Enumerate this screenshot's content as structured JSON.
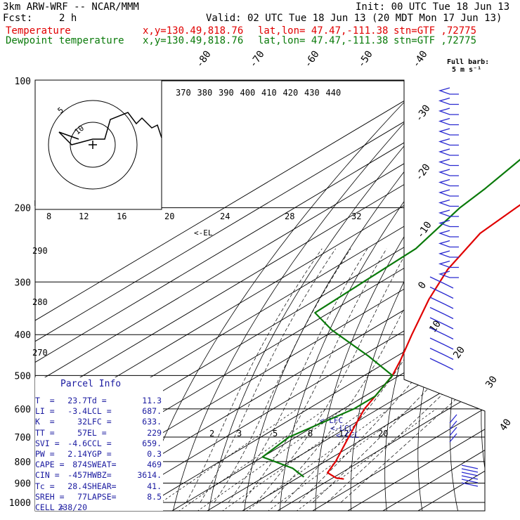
{
  "header": {
    "model": "3km ARW-WRF -- NCAR/MMM",
    "init": "Init: 00 UTC Tue 18 Jun 13",
    "fcst_label": "Fcst:",
    "fcst_value": "2 h",
    "valid": "Valid: 02 UTC Tue 18 Jun 13 (20 MDT Mon 17 Jun 13)",
    "temp_label": "Temperature",
    "temp_xy": "x,y=130.49,818.76",
    "temp_latlon": "lat,lon= 47.47,-111.38",
    "temp_stn": "stn=GTF ,72775",
    "dew_label": "Dewpoint temperature",
    "dew_xy": "x,y=130.49,818.76",
    "dew_latlon": "lat,lon= 47.47,-111.38",
    "dew_stn": "stn=GTF ,72775",
    "barb_legend_1": "Full barb:",
    "barb_legend_2": "5 m s⁻¹"
  },
  "colors": {
    "temperature": "#e00000",
    "dewpoint": "#0a7a0a",
    "barbs": "#2a2ad0",
    "grid": "#000000"
  },
  "chart_data": {
    "type": "line",
    "ylabel": "",
    "ylim": [
      1000,
      100
    ],
    "y_scale": "log",
    "pressure_ticks": [
      "100",
      "200",
      "300",
      "400",
      "500",
      "600",
      "700",
      "800",
      "900",
      "1000"
    ],
    "temp_isotherm_labels": [
      "-80",
      "-70",
      "-60",
      "-50",
      "-40",
      "-30",
      "-20",
      "-10",
      "0",
      "10",
      "20",
      "30",
      "40"
    ],
    "theta_labels": [
      "370",
      "380",
      "390",
      "400",
      "410",
      "420",
      "430",
      "440"
    ],
    "theta_labels_left": [
      "290",
      "280",
      "270"
    ],
    "mixing_ratio_labels": [
      "2",
      "3",
      "5",
      "8",
      "12",
      "20"
    ],
    "wind_hodo_ticks": [
      "8",
      "12",
      "16",
      "20",
      "24",
      "28",
      "32"
    ],
    "wind_hodo_unit": "kts",
    "hodograph_ring_labels": [
      "5",
      "10"
    ],
    "level_markers": [
      "<-EL",
      "<-LFC",
      "<-LCL",
      "<-CCL"
    ],
    "series": [
      {
        "name": "Temperature",
        "points": [
          [
            100,
            -58
          ],
          [
            140,
            -56
          ],
          [
            170,
            -59
          ],
          [
            200,
            -57
          ],
          [
            230,
            -55
          ],
          [
            280,
            -47
          ],
          [
            330,
            -38
          ],
          [
            400,
            -26
          ],
          [
            460,
            -17
          ],
          [
            500,
            -12
          ],
          [
            560,
            -7
          ],
          [
            600,
            -4
          ],
          [
            700,
            5
          ],
          [
            800,
            13
          ],
          [
            850,
            16
          ],
          [
            875,
            21
          ],
          [
            880,
            23.7
          ]
        ]
      },
      {
        "name": "Dewpoint temperature",
        "points": [
          [
            100,
            -79
          ],
          [
            130,
            -83
          ],
          [
            180,
            -75
          ],
          [
            200,
            -73
          ],
          [
            250,
            -66
          ],
          [
            300,
            -65
          ],
          [
            355,
            -64
          ],
          [
            390,
            -51
          ],
          [
            450,
            -28
          ],
          [
            500,
            -12
          ],
          [
            560,
            -7
          ],
          [
            600,
            -7
          ],
          [
            700,
            -12
          ],
          [
            780,
            -10
          ],
          [
            830,
            4
          ],
          [
            870,
            11.3
          ]
        ]
      }
    ]
  },
  "parcel_info": {
    "title": "Parcel Info",
    "rows": [
      [
        "T  =",
        "23.7",
        "Td =",
        "11.3"
      ],
      [
        "LI =",
        "-3.4",
        "LCL =",
        "687."
      ],
      [
        "K  =",
        "32",
        "LFC =",
        "633."
      ],
      [
        "TT =",
        "57",
        "EL =",
        "229"
      ],
      [
        "SVI =",
        "-4.6",
        "CCL =",
        "659."
      ],
      [
        "PW =",
        "2.14",
        "YGP =",
        "0.3"
      ],
      [
        "CAPE =",
        "874",
        "SWEAT=",
        "469"
      ],
      [
        "CIN =",
        "-457",
        "HWBZ=",
        "3614."
      ],
      [
        "Tc =",
        "28.4",
        "SHEAR=",
        "41."
      ],
      [
        "SREH =",
        "77",
        "LAPSE=",
        "8.5"
      ],
      [
        "CELL =",
        "238/20",
        "",
        ""
      ]
    ]
  }
}
